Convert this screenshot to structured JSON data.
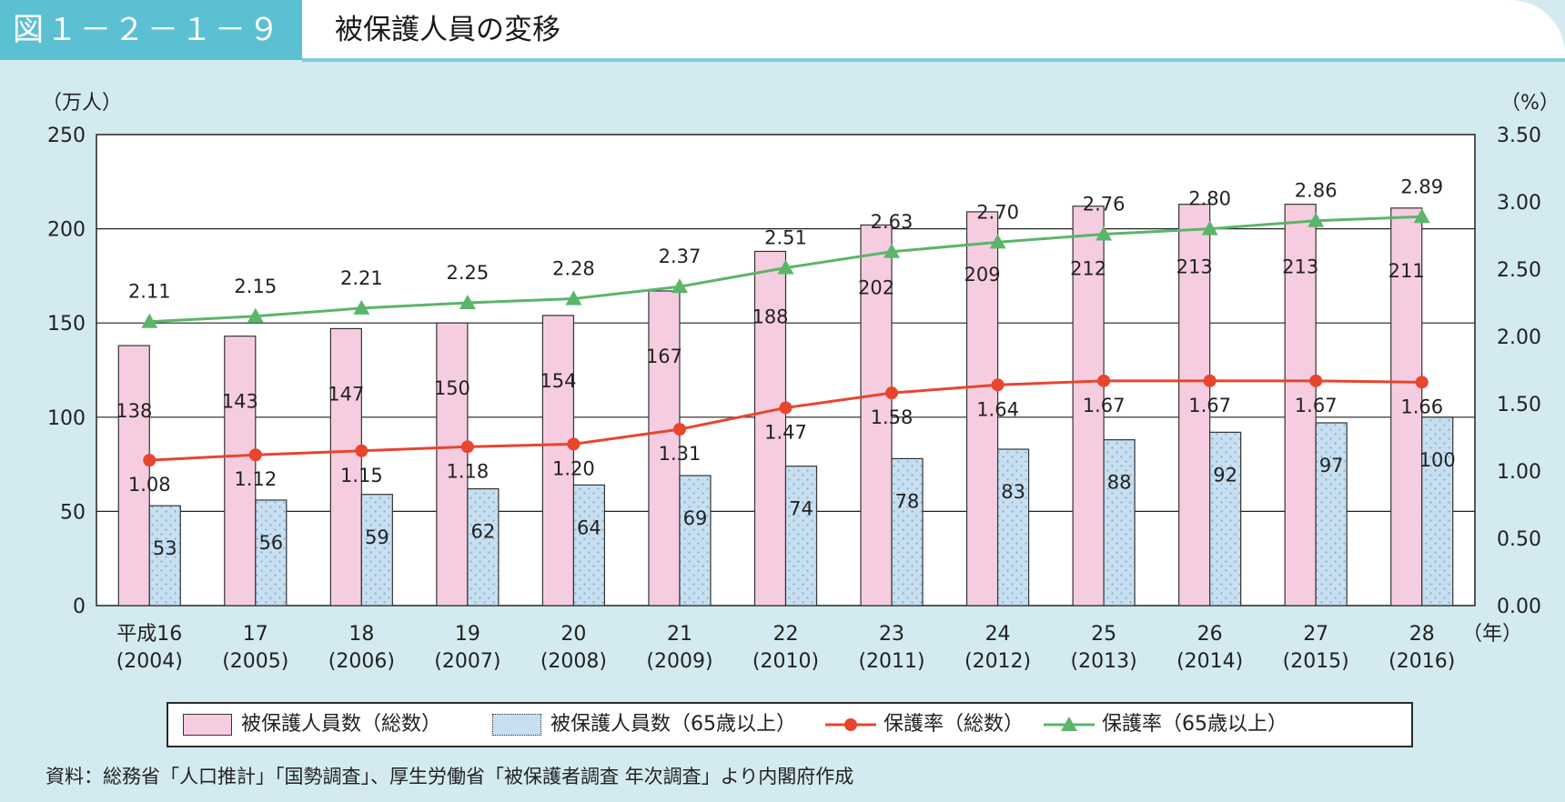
{
  "header": {
    "figure_number": "図１－２－１－９",
    "title": "被保護人員の変移"
  },
  "chart_data": {
    "type": "bar",
    "title": "被保護人員の変移",
    "categories": [
      {
        "year": "平成16",
        "western": "(2004)"
      },
      {
        "year": "17",
        "western": "(2005)"
      },
      {
        "year": "18",
        "western": "(2006)"
      },
      {
        "year": "19",
        "western": "(2007)"
      },
      {
        "year": "20",
        "western": "(2008)"
      },
      {
        "year": "21",
        "western": "(2009)"
      },
      {
        "year": "22",
        "western": "(2010)"
      },
      {
        "year": "23",
        "western": "(2011)"
      },
      {
        "year": "24",
        "western": "(2012)"
      },
      {
        "year": "25",
        "western": "(2013)"
      },
      {
        "year": "26",
        "western": "(2014)"
      },
      {
        "year": "27",
        "western": "(2015)"
      },
      {
        "year": "28",
        "western": "(2016)"
      }
    ],
    "x_unit_label": "（年）",
    "left_axis": {
      "unit_label": "（万人）",
      "ylim": [
        0,
        250
      ],
      "ticks": [
        "0",
        "50",
        "100",
        "150",
        "200",
        "250"
      ]
    },
    "right_axis": {
      "unit_label": "（%）",
      "ylim": [
        0,
        3.5
      ],
      "ticks": [
        "0.00",
        "0.50",
        "1.00",
        "1.50",
        "2.00",
        "2.50",
        "3.00",
        "3.50"
      ]
    },
    "grid": "horizontal",
    "legend_position": "bottom",
    "series": [
      {
        "name": "被保護人員数（総数）",
        "type": "bar",
        "axis": "left",
        "color": "#f6cde0",
        "values": [
          138,
          143,
          147,
          150,
          154,
          167,
          188,
          202,
          209,
          212,
          213,
          213,
          211
        ],
        "labels": [
          "138",
          "143",
          "147",
          "150",
          "154",
          "167",
          "188",
          "202",
          "209",
          "212",
          "213",
          "213",
          "211"
        ]
      },
      {
        "name": "被保護人員数（65歳以上）",
        "type": "bar",
        "axis": "left",
        "color": "#c8dff0",
        "values": [
          53,
          56,
          59,
          62,
          64,
          69,
          74,
          78,
          83,
          88,
          92,
          97,
          100
        ],
        "labels": [
          "53",
          "56",
          "59",
          "62",
          "64",
          "69",
          "74",
          "78",
          "83",
          "88",
          "92",
          "97",
          "100"
        ]
      },
      {
        "name": "保護率（総数）",
        "type": "line",
        "axis": "right",
        "color": "#e8452e",
        "marker": "circle",
        "values": [
          1.08,
          1.12,
          1.15,
          1.18,
          1.2,
          1.31,
          1.47,
          1.58,
          1.64,
          1.67,
          1.67,
          1.67,
          1.66
        ],
        "labels": [
          "1.08",
          "1.12",
          "1.15",
          "1.18",
          "1.20",
          "1.31",
          "1.47",
          "1.58",
          "1.64",
          "1.67",
          "1.67",
          "1.67",
          "1.66"
        ]
      },
      {
        "name": "保護率（65歳以上）",
        "type": "line",
        "axis": "right",
        "color": "#5bb56a",
        "marker": "triangle",
        "values": [
          2.11,
          2.15,
          2.21,
          2.25,
          2.28,
          2.37,
          2.51,
          2.63,
          2.7,
          2.76,
          2.8,
          2.86,
          2.89
        ],
        "labels": [
          "2.11",
          "2.15",
          "2.21",
          "2.25",
          "2.28",
          "2.37",
          "2.51",
          "2.63",
          "2.70",
          "2.76",
          "2.80",
          "2.86",
          "2.89"
        ]
      }
    ]
  },
  "source_note": "資料：総務省「人口推計」「国勢調査」、厚生労働省「被保護者調査 年次調査」より内閣府作成"
}
